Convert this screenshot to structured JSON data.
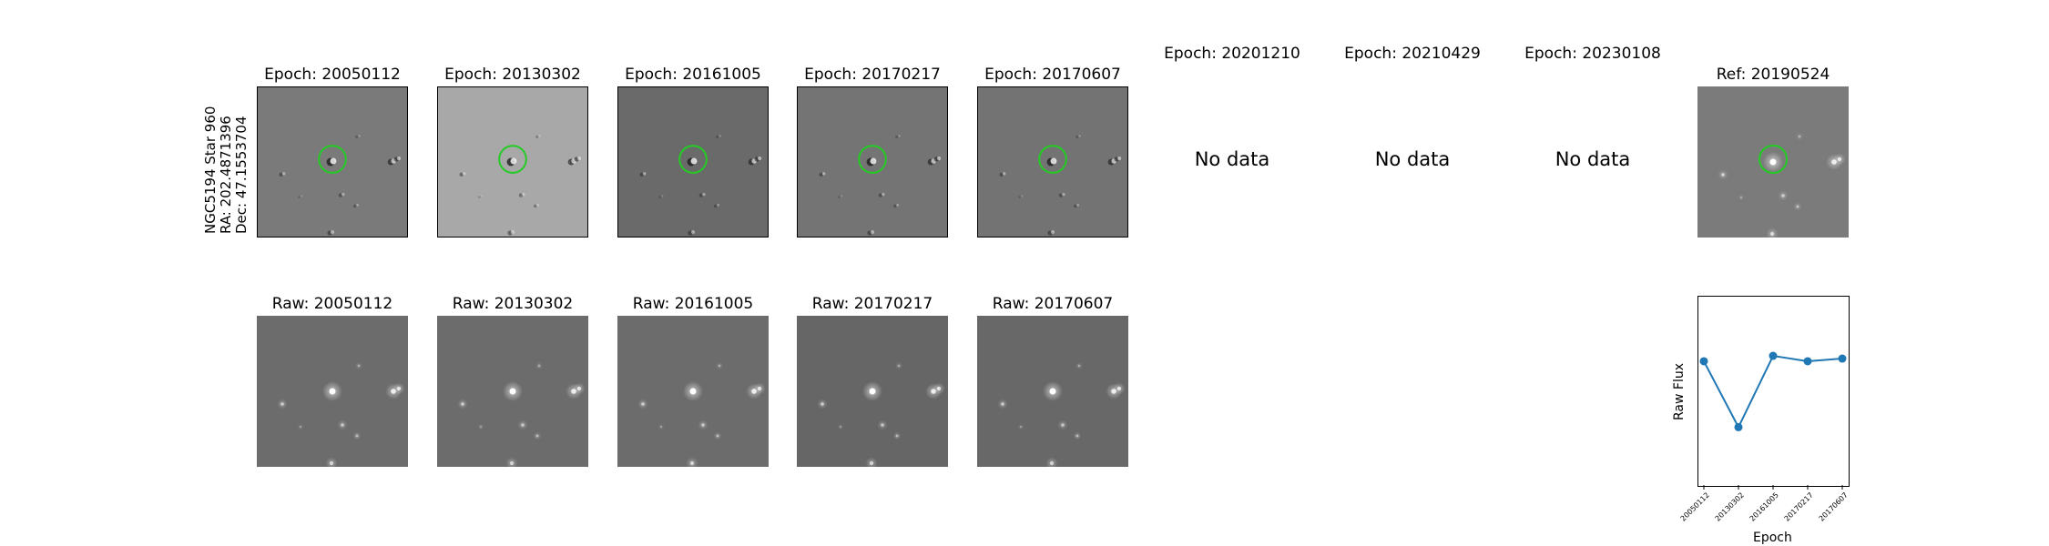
{
  "target": {
    "name": "NGC5194 Star 960",
    "ra": "RA: 202.4871396",
    "dec": "Dec: 47.1553704"
  },
  "diff_row": [
    {
      "title": "Epoch: 20050112",
      "has_data": true,
      "shade": "#7a7a7a"
    },
    {
      "title": "Epoch: 20130302",
      "has_data": true,
      "shade": "#a8a8a8"
    },
    {
      "title": "Epoch: 20161005",
      "has_data": true,
      "shade": "#6a6a6a"
    },
    {
      "title": "Epoch: 20170217",
      "has_data": true,
      "shade": "#747474"
    },
    {
      "title": "Epoch: 20170607",
      "has_data": true,
      "shade": "#737373"
    },
    {
      "title": "Epoch: 20201210",
      "has_data": false,
      "no_data": "No data"
    },
    {
      "title": "Epoch: 20210429",
      "has_data": false,
      "no_data": "No data"
    },
    {
      "title": "Epoch: 20230108",
      "has_data": false,
      "no_data": "No data"
    }
  ],
  "ref": {
    "title": "Ref: 20190524",
    "shade": "#7b7b7b"
  },
  "raw_row": [
    {
      "title": "Raw: 20050112",
      "shade": "#6c6c6c"
    },
    {
      "title": "Raw: 20130302",
      "shade": "#6c6c6c"
    },
    {
      "title": "Raw: 20161005",
      "shade": "#6c6c6c"
    },
    {
      "title": "Raw: 20170217",
      "shade": "#666666"
    },
    {
      "title": "Raw: 20170607",
      "shade": "#686868"
    }
  ],
  "circle_color": "#22cc22",
  "chart_data": {
    "type": "line",
    "title": "",
    "xlabel": "Epoch",
    "ylabel": "Raw Flux",
    "categories": [
      "20050112",
      "20130302",
      "20161005",
      "20170217",
      "20170607"
    ],
    "values": [
      0.72,
      0.23,
      0.76,
      0.72,
      0.74
    ],
    "ylim": [
      -0.2,
      1.2
    ],
    "color": "#1f77b4",
    "grid": false
  }
}
